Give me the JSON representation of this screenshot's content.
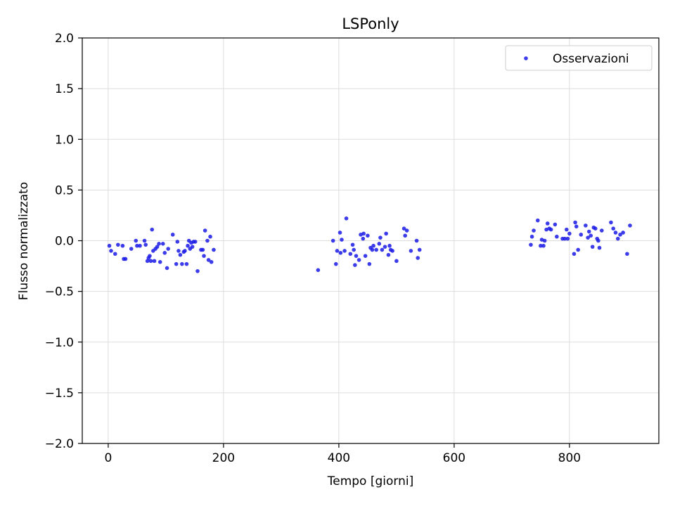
{
  "chart_data": {
    "type": "scatter",
    "title": "LSPonly",
    "xlabel": "Tempo [giorni]",
    "ylabel": "Flusso normalizzato",
    "xlim": [
      -45,
      955
    ],
    "ylim": [
      -2.0,
      2.0
    ],
    "xticks": [
      "0",
      "200",
      "400",
      "600",
      "800"
    ],
    "xtick_values": [
      0,
      200,
      400,
      600,
      800
    ],
    "yticks": [
      "−2.0",
      "−1.5",
      "−1.0",
      "−0.5",
      "0.0",
      "0.5",
      "1.0",
      "1.5",
      "2.0"
    ],
    "ytick_values": [
      -2.0,
      -1.5,
      -1.0,
      -0.5,
      0.0,
      0.5,
      1.0,
      1.5,
      2.0
    ],
    "grid": true,
    "legend_position": "top-right",
    "series": [
      {
        "name": "Osservazioni",
        "color": "#1a1ae6",
        "points": [
          [
            2,
            -0.05
          ],
          [
            5,
            -0.1
          ],
          [
            12,
            -0.13
          ],
          [
            17,
            -0.04
          ],
          [
            25,
            -0.05
          ],
          [
            27,
            -0.18
          ],
          [
            30,
            -0.18
          ],
          [
            40,
            -0.08
          ],
          [
            48,
            0.0
          ],
          [
            50,
            -0.05
          ],
          [
            55,
            -0.05
          ],
          [
            63,
            0.0
          ],
          [
            65,
            -0.04
          ],
          [
            68,
            -0.2
          ],
          [
            70,
            -0.17
          ],
          [
            72,
            -0.15
          ],
          [
            74,
            -0.2
          ],
          [
            76,
            0.11
          ],
          [
            78,
            -0.1
          ],
          [
            80,
            -0.2
          ],
          [
            82,
            -0.08
          ],
          [
            85,
            -0.06
          ],
          [
            88,
            -0.03
          ],
          [
            90,
            -0.21
          ],
          [
            95,
            -0.03
          ],
          [
            98,
            -0.12
          ],
          [
            102,
            -0.27
          ],
          [
            104,
            -0.08
          ],
          [
            112,
            0.06
          ],
          [
            118,
            -0.23
          ],
          [
            120,
            -0.01
          ],
          [
            122,
            -0.1
          ],
          [
            125,
            -0.14
          ],
          [
            128,
            -0.23
          ],
          [
            131,
            -0.11
          ],
          [
            133,
            -0.1
          ],
          [
            136,
            -0.23
          ],
          [
            138,
            -0.05
          ],
          [
            140,
            0.0
          ],
          [
            142,
            -0.08
          ],
          [
            144,
            -0.02
          ],
          [
            146,
            -0.06
          ],
          [
            148,
            -0.01
          ],
          [
            151,
            -0.01
          ],
          [
            155,
            -0.3
          ],
          [
            161,
            -0.09
          ],
          [
            164,
            -0.09
          ],
          [
            166,
            -0.15
          ],
          [
            168,
            0.1
          ],
          [
            172,
            0.0
          ],
          [
            174,
            -0.19
          ],
          [
            177,
            0.04
          ],
          [
            179,
            -0.21
          ],
          [
            183,
            -0.09
          ],
          [
            364,
            -0.29
          ],
          [
            390,
            0.0
          ],
          [
            395,
            -0.23
          ],
          [
            397,
            -0.1
          ],
          [
            402,
            0.08
          ],
          [
            403,
            -0.12
          ],
          [
            405,
            0.01
          ],
          [
            410,
            -0.1
          ],
          [
            413,
            0.22
          ],
          [
            420,
            -0.13
          ],
          [
            424,
            -0.04
          ],
          [
            426,
            -0.09
          ],
          [
            428,
            -0.24
          ],
          [
            430,
            -0.15
          ],
          [
            435,
            -0.19
          ],
          [
            438,
            0.06
          ],
          [
            442,
            0.02
          ],
          [
            443,
            0.07
          ],
          [
            446,
            -0.15
          ],
          [
            450,
            0.05
          ],
          [
            453,
            -0.23
          ],
          [
            455,
            -0.07
          ],
          [
            458,
            -0.09
          ],
          [
            460,
            -0.05
          ],
          [
            465,
            -0.09
          ],
          [
            470,
            -0.03
          ],
          [
            472,
            0.03
          ],
          [
            475,
            -0.09
          ],
          [
            480,
            -0.06
          ],
          [
            482,
            0.07
          ],
          [
            486,
            -0.14
          ],
          [
            488,
            -0.05
          ],
          [
            490,
            -0.09
          ],
          [
            493,
            -0.1
          ],
          [
            500,
            -0.2
          ],
          [
            513,
            0.12
          ],
          [
            515,
            0.05
          ],
          [
            518,
            0.1
          ],
          [
            525,
            -0.1
          ],
          [
            535,
            0.0
          ],
          [
            537,
            -0.17
          ],
          [
            540,
            -0.09
          ],
          [
            733,
            -0.04
          ],
          [
            735,
            0.04
          ],
          [
            738,
            0.1
          ],
          [
            745,
            0.2
          ],
          [
            750,
            -0.05
          ],
          [
            752,
            0.01
          ],
          [
            755,
            -0.05
          ],
          [
            757,
            0.0
          ],
          [
            760,
            0.11
          ],
          [
            762,
            0.17
          ],
          [
            765,
            0.12
          ],
          [
            768,
            0.11
          ],
          [
            775,
            0.16
          ],
          [
            778,
            0.04
          ],
          [
            788,
            0.02
          ],
          [
            792,
            0.02
          ],
          [
            795,
            0.11
          ],
          [
            797,
            0.02
          ],
          [
            800,
            0.07
          ],
          [
            808,
            -0.13
          ],
          [
            810,
            0.18
          ],
          [
            812,
            0.14
          ],
          [
            815,
            -0.09
          ],
          [
            820,
            0.06
          ],
          [
            828,
            0.15
          ],
          [
            832,
            0.03
          ],
          [
            834,
            0.09
          ],
          [
            837,
            0.05
          ],
          [
            840,
            -0.06
          ],
          [
            842,
            0.13
          ],
          [
            845,
            0.12
          ],
          [
            848,
            0.02
          ],
          [
            850,
            0.0
          ],
          [
            852,
            -0.07
          ],
          [
            856,
            0.1
          ],
          [
            872,
            0.18
          ],
          [
            876,
            0.12
          ],
          [
            880,
            0.08
          ],
          [
            884,
            0.02
          ],
          [
            888,
            0.06
          ],
          [
            893,
            0.08
          ],
          [
            900,
            -0.13
          ],
          [
            905,
            0.15
          ]
        ]
      }
    ]
  }
}
